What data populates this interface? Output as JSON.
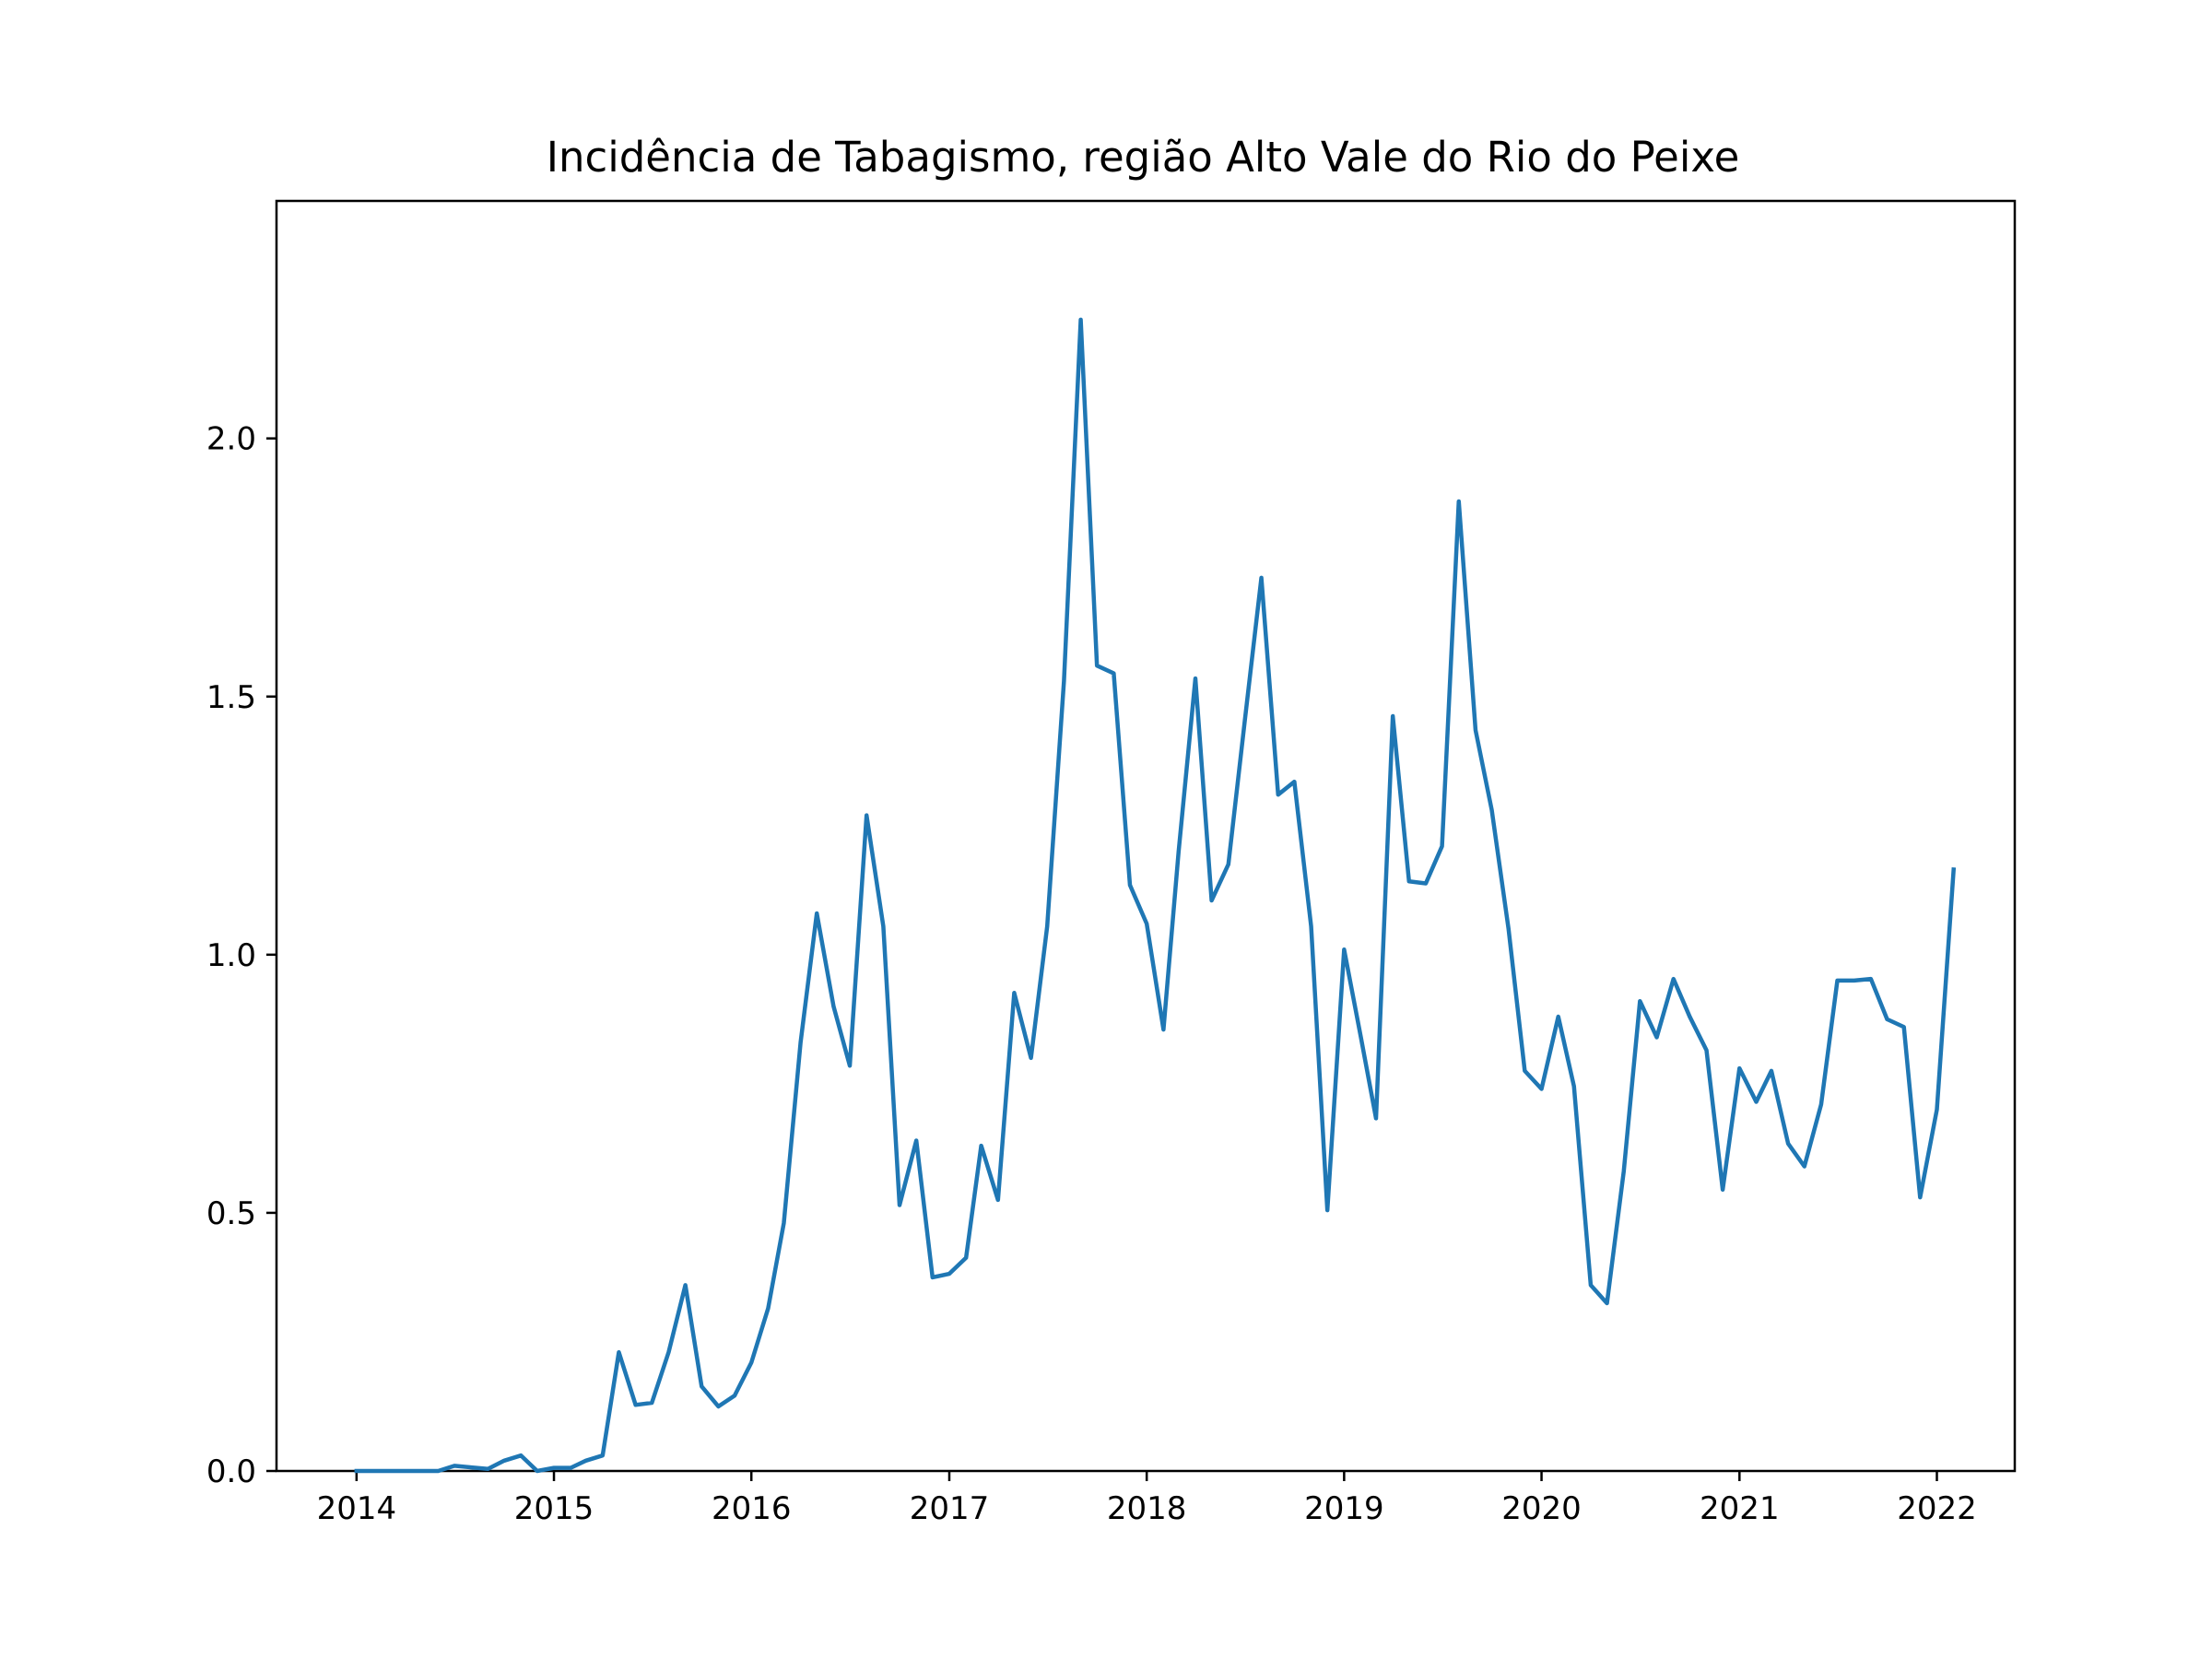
{
  "chart_data": {
    "type": "line",
    "title": "Incidência de Tabagismo, região Alto Vale do Rio do Peixe",
    "xlabel": "",
    "ylabel": "",
    "x_axis": {
      "kind": "date",
      "range": [
        "2013-08-06",
        "2022-05-25"
      ],
      "ticks": [
        "2014",
        "2015",
        "2016",
        "2017",
        "2018",
        "2019",
        "2020",
        "2021",
        "2022"
      ]
    },
    "y_axis": {
      "range": [
        0,
        2.46
      ],
      "ticks": [
        "0.0",
        "0.5",
        "1.0",
        "1.5",
        "2.0"
      ]
    },
    "grid": false,
    "legend": "none",
    "colors": {
      "series": "#1f77b4"
    },
    "series": [
      {
        "color": "#1f77b4",
        "points": [
          [
            "2014-01-01",
            0.0
          ],
          [
            "2014-02-01",
            0.0
          ],
          [
            "2014-03-01",
            0.0
          ],
          [
            "2014-04-01",
            0.0
          ],
          [
            "2014-05-01",
            0.0
          ],
          [
            "2014-06-01",
            0.0
          ],
          [
            "2014-07-01",
            0.01
          ],
          [
            "2014-08-01",
            0.007
          ],
          [
            "2014-09-01",
            0.004
          ],
          [
            "2014-10-01",
            0.02
          ],
          [
            "2014-11-01",
            0.03
          ],
          [
            "2014-12-01",
            0.0
          ],
          [
            "2015-01-01",
            0.006
          ],
          [
            "2015-02-01",
            0.006
          ],
          [
            "2015-03-01",
            0.02
          ],
          [
            "2015-04-01",
            0.03
          ],
          [
            "2015-05-01",
            0.23
          ],
          [
            "2015-06-01",
            0.128
          ],
          [
            "2015-07-01",
            0.132
          ],
          [
            "2015-08-01",
            0.23
          ],
          [
            "2015-09-01",
            0.36
          ],
          [
            "2015-10-01",
            0.164
          ],
          [
            "2015-11-01",
            0.125
          ],
          [
            "2015-12-01",
            0.146
          ],
          [
            "2016-01-01",
            0.21
          ],
          [
            "2016-02-01",
            0.315
          ],
          [
            "2016-03-01",
            0.48
          ],
          [
            "2016-04-01",
            0.83
          ],
          [
            "2016-05-01",
            1.08
          ],
          [
            "2016-06-01",
            0.9
          ],
          [
            "2016-07-01",
            0.785
          ],
          [
            "2016-08-01",
            1.27
          ],
          [
            "2016-09-01",
            1.055
          ],
          [
            "2016-10-01",
            0.515
          ],
          [
            "2016-11-01",
            0.64
          ],
          [
            "2016-12-01",
            0.375
          ],
          [
            "2017-01-01",
            0.382
          ],
          [
            "2017-02-01",
            0.413
          ],
          [
            "2017-03-01",
            0.63
          ],
          [
            "2017-04-01",
            0.525
          ],
          [
            "2017-05-01",
            0.926
          ],
          [
            "2017-06-01",
            0.8
          ],
          [
            "2017-07-01",
            1.055
          ],
          [
            "2017-08-01",
            1.53
          ],
          [
            "2017-09-01",
            2.23
          ],
          [
            "2017-10-01",
            1.56
          ],
          [
            "2017-11-01",
            1.545
          ],
          [
            "2017-12-01",
            1.135
          ],
          [
            "2018-01-01",
            1.06
          ],
          [
            "2018-02-01",
            0.855
          ],
          [
            "2018-03-01",
            1.2
          ],
          [
            "2018-04-01",
            1.535
          ],
          [
            "2018-05-01",
            1.105
          ],
          [
            "2018-06-01",
            1.175
          ],
          [
            "2018-07-01",
            1.45
          ],
          [
            "2018-08-01",
            1.73
          ],
          [
            "2018-09-01",
            1.31
          ],
          [
            "2018-10-01",
            1.335
          ],
          [
            "2018-11-01",
            1.055
          ],
          [
            "2018-12-01",
            0.505
          ],
          [
            "2019-01-01",
            1.01
          ],
          [
            "2019-02-01",
            0.84
          ],
          [
            "2019-03-01",
            0.683
          ],
          [
            "2019-04-01",
            1.462
          ],
          [
            "2019-05-01",
            1.142
          ],
          [
            "2019-06-01",
            1.138
          ],
          [
            "2019-07-01",
            1.21
          ],
          [
            "2019-08-01",
            1.878
          ],
          [
            "2019-09-01",
            1.435
          ],
          [
            "2019-10-01",
            1.28
          ],
          [
            "2019-11-01",
            1.05
          ],
          [
            "2019-12-01",
            0.775
          ],
          [
            "2020-01-01",
            0.74
          ],
          [
            "2020-02-01",
            0.88
          ],
          [
            "2020-03-01",
            0.745
          ],
          [
            "2020-04-01",
            0.36
          ],
          [
            "2020-05-01",
            0.325
          ],
          [
            "2020-06-01",
            0.58
          ],
          [
            "2020-07-01",
            0.91
          ],
          [
            "2020-08-01",
            0.84
          ],
          [
            "2020-09-01",
            0.953
          ],
          [
            "2020-10-01",
            0.88
          ],
          [
            "2020-11-01",
            0.815
          ],
          [
            "2020-12-01",
            0.545
          ],
          [
            "2021-01-01",
            0.78
          ],
          [
            "2021-02-01",
            0.715
          ],
          [
            "2021-03-01",
            0.775
          ],
          [
            "2021-04-01",
            0.634
          ],
          [
            "2021-05-01",
            0.59
          ],
          [
            "2021-06-01",
            0.71
          ],
          [
            "2021-07-01",
            0.95
          ],
          [
            "2021-08-01",
            0.95
          ],
          [
            "2021-09-01",
            0.953
          ],
          [
            "2021-10-01",
            0.875
          ],
          [
            "2021-11-01",
            0.86
          ],
          [
            "2021-12-01",
            0.53
          ],
          [
            "2022-01-01",
            0.7
          ],
          [
            "2022-02-01",
            1.165
          ]
        ]
      }
    ]
  }
}
